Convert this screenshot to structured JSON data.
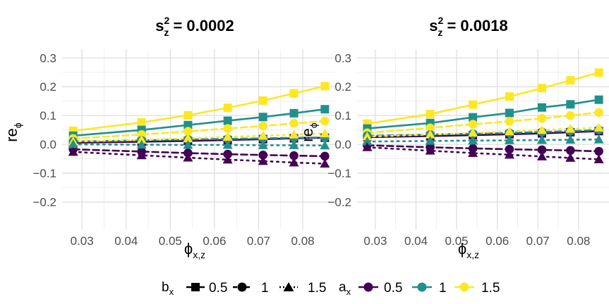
{
  "figure": {
    "legend": {
      "shape_title": "b",
      "shape_title_sub": "x",
      "shape_entries": [
        {
          "label": "0.5",
          "shape": "square-icon",
          "line": "solid"
        },
        {
          "label": "1",
          "shape": "circle-icon",
          "line": "dashed"
        },
        {
          "label": "1.5",
          "shape": "triangle-icon",
          "line": "dotted"
        }
      ],
      "color_title": "a",
      "color_title_sub": "x",
      "color_entries": [
        {
          "label": "0.5",
          "color": "#440154"
        },
        {
          "label": "1",
          "color": "#21908C"
        },
        {
          "label": "1.5",
          "color": "#FDE725"
        }
      ]
    }
  },
  "chart_data": [
    {
      "type": "line",
      "title_base": "s",
      "title_sup": "2",
      "title_sub": "z",
      "title_value": " = 0.0002",
      "xlabel_base": "ϕ",
      "xlabel_sub": "x,z",
      "ylabel_base": "re",
      "ylabel_sub": "ϕ",
      "xlim": [
        0.0255,
        0.0875
      ],
      "ylim": [
        -0.295,
        0.33
      ],
      "xticks": [
        0.03,
        0.04,
        0.05,
        0.06,
        0.07,
        0.08
      ],
      "xtick_labels": [
        "0.03",
        "0.04",
        "0.05",
        "0.06",
        "0.07",
        "0.08"
      ],
      "yticks": [
        -0.2,
        -0.1,
        0.0,
        0.1,
        0.2,
        0.3
      ],
      "ytick_labels": [
        "−0.2",
        "−0.1",
        "0.0",
        "0.1",
        "0.2",
        "0.3"
      ],
      "x": [
        0.028,
        0.0435,
        0.054,
        0.063,
        0.071,
        0.078,
        0.085
      ],
      "series": [
        {
          "a": "1.5",
          "b": "0.5",
          "color": "#FDE725",
          "shape": "square",
          "line": "solid",
          "values": [
            0.047,
            0.076,
            0.101,
            0.127,
            0.152,
            0.177,
            0.202
          ]
        },
        {
          "a": "1",
          "b": "0.5",
          "color": "#21908C",
          "shape": "square",
          "line": "solid",
          "values": [
            0.03,
            0.05,
            0.067,
            0.082,
            0.095,
            0.108,
            0.122
          ]
        },
        {
          "a": "0.5",
          "b": "0.5",
          "color": "#440154",
          "shape": "square",
          "line": "solid",
          "values": [
            0.006,
            0.009,
            0.012,
            0.015,
            0.018,
            0.021,
            0.023
          ]
        },
        {
          "a": "1.5",
          "b": "1",
          "color": "#FDE725",
          "shape": "circle",
          "line": "dashed",
          "values": [
            0.02,
            0.034,
            0.045,
            0.055,
            0.064,
            0.073,
            0.081
          ]
        },
        {
          "a": "1",
          "b": "1",
          "color": "#21908C",
          "shape": "circle",
          "line": "dashed",
          "values": [
            0.01,
            0.014,
            0.017,
            0.019,
            0.021,
            0.023,
            0.024
          ]
        },
        {
          "a": "0.5",
          "b": "1",
          "color": "#440154",
          "shape": "circle",
          "line": "dashed",
          "values": [
            -0.017,
            -0.025,
            -0.03,
            -0.034,
            -0.037,
            -0.039,
            -0.041
          ]
        },
        {
          "a": "1.5",
          "b": "1.5",
          "color": "#FDE725",
          "shape": "triangle",
          "line": "dotted",
          "values": [
            0.01,
            0.016,
            0.021,
            0.026,
            0.03,
            0.034,
            0.038
          ]
        },
        {
          "a": "1",
          "b": "1.5",
          "color": "#21908C",
          "shape": "triangle",
          "line": "dotted",
          "values": [
            0.0,
            -0.001,
            -0.002,
            -0.002,
            -0.003,
            -0.003,
            -0.004
          ]
        },
        {
          "a": "0.5",
          "b": "1.5",
          "color": "#440154",
          "shape": "triangle",
          "line": "dotted",
          "values": [
            -0.026,
            -0.038,
            -0.046,
            -0.053,
            -0.058,
            -0.063,
            -0.067
          ]
        }
      ]
    },
    {
      "type": "line",
      "title_base": "s",
      "title_sup": "2",
      "title_sub": "z",
      "title_value": " = 0.0018",
      "xlabel_base": "ϕ",
      "xlabel_sub": "x,z",
      "ylabel_base": "re",
      "ylabel_sub": "ϕ",
      "xlim": [
        0.0255,
        0.0875
      ],
      "ylim": [
        -0.295,
        0.33
      ],
      "xticks": [
        0.03,
        0.04,
        0.05,
        0.06,
        0.07,
        0.08
      ],
      "xtick_labels": [
        "0.03",
        "0.04",
        "0.05",
        "0.06",
        "0.07",
        "0.08"
      ],
      "yticks": [
        -0.2,
        -0.1,
        0.0,
        0.1,
        0.2,
        0.3
      ],
      "ytick_labels": [
        "−0.2",
        "−0.1",
        "0.0",
        "0.1",
        "0.2",
        "0.3"
      ],
      "x": [
        0.028,
        0.0435,
        0.054,
        0.063,
        0.071,
        0.078,
        0.085
      ],
      "series": [
        {
          "a": "1.5",
          "b": "0.5",
          "color": "#FDE725",
          "shape": "square",
          "line": "solid",
          "values": [
            0.072,
            0.105,
            0.138,
            0.166,
            0.195,
            0.222,
            0.249
          ]
        },
        {
          "a": "1",
          "b": "0.5",
          "color": "#21908C",
          "shape": "square",
          "line": "solid",
          "values": [
            0.055,
            0.074,
            0.094,
            0.109,
            0.128,
            0.139,
            0.155
          ]
        },
        {
          "a": "0.5",
          "b": "0.5",
          "color": "#440154",
          "shape": "square",
          "line": "solid",
          "values": [
            0.025,
            0.029,
            0.032,
            0.035,
            0.038,
            0.042,
            0.046
          ]
        },
        {
          "a": "1.5",
          "b": "1",
          "color": "#FDE725",
          "shape": "circle",
          "line": "dashed",
          "values": [
            0.04,
            0.057,
            0.07,
            0.08,
            0.09,
            0.1,
            0.111
          ]
        },
        {
          "a": "1",
          "b": "1",
          "color": "#21908C",
          "shape": "circle",
          "line": "dashed",
          "values": [
            0.03,
            0.034,
            0.037,
            0.04,
            0.043,
            0.046,
            0.05
          ]
        },
        {
          "a": "0.5",
          "b": "1",
          "color": "#440154",
          "shape": "circle",
          "line": "dashed",
          "values": [
            -0.003,
            -0.01,
            -0.014,
            -0.017,
            -0.019,
            -0.021,
            -0.024
          ]
        },
        {
          "a": "1.5",
          "b": "1.5",
          "color": "#FDE725",
          "shape": "triangle",
          "line": "dotted",
          "values": [
            0.027,
            0.034,
            0.04,
            0.045,
            0.05,
            0.054,
            0.058
          ]
        },
        {
          "a": "1",
          "b": "1.5",
          "color": "#21908C",
          "shape": "triangle",
          "line": "dotted",
          "values": [
            0.01,
            0.012,
            0.013,
            0.014,
            0.015,
            0.016,
            0.017
          ]
        },
        {
          "a": "0.5",
          "b": "1.5",
          "color": "#440154",
          "shape": "triangle",
          "line": "dotted",
          "values": [
            -0.01,
            -0.022,
            -0.03,
            -0.036,
            -0.042,
            -0.047,
            -0.052
          ]
        }
      ]
    }
  ]
}
